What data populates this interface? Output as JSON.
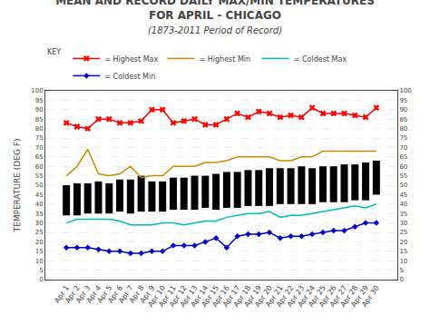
{
  "chart_data": {
    "type": "bar",
    "title": "MEAN AND RECORD DAILY MAX/MIN TEMPERATURES\nFOR APRIL - CHICAGO",
    "subtitle": "(1873-2011 Period of Record)",
    "y_label": "TEMPERATURE (DEG F)",
    "annotations": [
      "KEY"
    ],
    "categories": [
      "Apr 1",
      "Apr 2",
      "Apr 3",
      "Apr 4",
      "Apr 5",
      "Apr 6",
      "Apr 7",
      "Apr 8",
      "Apr 9",
      "Apr 10",
      "Apr 11",
      "Apr 12",
      "Apr 13",
      "Apr 14",
      "Apr 15",
      "Apr 16",
      "Apr 17",
      "Apr 18",
      "Apr 19",
      "Apr 20",
      "Apr 21",
      "Apr 22",
      "Apr 23",
      "Apr 24",
      "Apr 25",
      "Apr 26",
      "Apr 27",
      "Apr 28",
      "Apr 29",
      "Apr 30"
    ],
    "series": [
      {
        "type": "bar",
        "color": "#000000",
        "values": [
          50,
          51,
          51,
          52,
          51,
          53,
          53,
          55,
          52,
          52,
          54,
          54,
          55,
          55,
          56,
          57,
          57,
          58,
          58,
          59,
          59,
          59,
          60,
          59,
          60,
          60,
          61,
          61,
          62,
          63
        ],
        "low": [
          34,
          34,
          35,
          35,
          35,
          36,
          35,
          36,
          36,
          36,
          37,
          37,
          37,
          38,
          37,
          38,
          38,
          39,
          39,
          39,
          40,
          40,
          40,
          40,
          41,
          41,
          41,
          42,
          42,
          45
        ]
      },
      {
        "type": "line",
        "name": "= Highest Max",
        "color": "#ff0000",
        "marker": "x",
        "values": [
          83,
          81,
          80,
          85,
          85,
          83,
          83,
          84,
          90,
          90,
          83,
          84,
          85,
          82,
          82,
          85,
          88,
          86,
          89,
          88,
          86,
          87,
          86,
          91,
          88,
          88,
          88,
          87,
          86,
          91
        ]
      },
      {
        "type": "line",
        "name": "= Highest Min",
        "color": "#cc8800",
        "values": [
          55,
          60,
          69,
          56,
          55,
          56,
          60,
          54,
          55,
          55,
          60,
          60,
          60,
          62,
          62,
          63,
          65,
          65,
          65,
          65,
          63,
          63,
          65,
          65,
          68,
          68,
          68,
          68,
          68,
          68
        ]
      },
      {
        "type": "line",
        "name": "= Coldest Max",
        "color": "#00bbbb",
        "values": [
          30,
          32,
          32,
          32,
          32,
          31,
          29,
          29,
          29,
          30,
          30,
          29,
          30,
          31,
          31,
          33,
          34,
          35,
          35,
          36,
          33,
          34,
          34,
          35,
          36,
          37,
          38,
          39,
          38,
          40
        ]
      },
      {
        "type": "line",
        "name": "= Coldest Min",
        "color": "#0000cc",
        "marker": "diamond",
        "values": [
          17,
          17,
          17,
          16,
          15,
          15,
          14,
          14,
          15,
          15,
          18,
          18,
          18,
          20,
          22,
          17,
          23,
          24,
          24,
          25,
          22,
          23,
          23,
          24,
          25,
          26,
          26,
          28,
          30,
          30
        ]
      }
    ],
    "ylim": [
      0,
      100
    ],
    "yticks": [
      0,
      5,
      10,
      15,
      20,
      25,
      30,
      35,
      40,
      45,
      50,
      55,
      60,
      65,
      70,
      75,
      80,
      85,
      90,
      95,
      100
    ],
    "y2lim": [
      0,
      100
    ],
    "y2ticks": [
      0,
      5,
      10,
      15,
      20,
      25,
      30,
      35,
      40,
      45,
      50,
      55,
      60,
      65,
      70,
      75,
      80,
      85,
      90,
      95,
      100
    ],
    "grid": "y",
    "legend": "upper left"
  }
}
